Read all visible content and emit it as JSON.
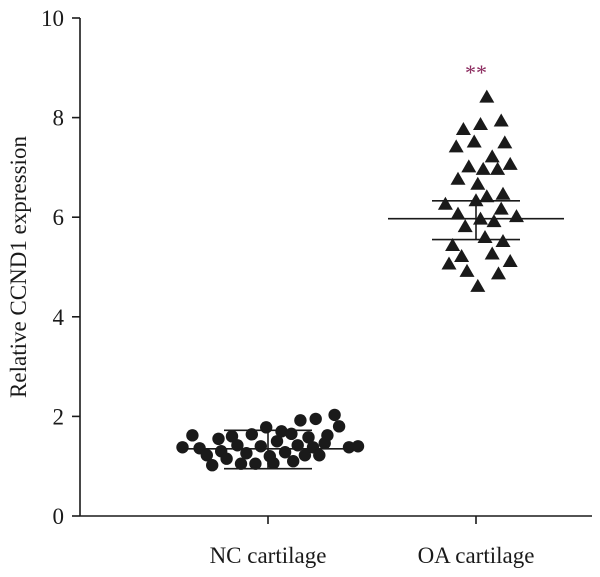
{
  "chart_data": {
    "type": "scatter",
    "title": "",
    "xlabel": "",
    "ylabel": "Relative CCND1 expression",
    "ylim": [
      0,
      10
    ],
    "yticks": [
      0,
      2,
      4,
      6,
      8,
      10
    ],
    "categories": [
      "NC cartilage",
      "OA cartilage"
    ],
    "grid": false,
    "legend": "none",
    "series": [
      {
        "category": "NC cartilage",
        "marker": "circle",
        "color": "#1a1a1a",
        "mean": 1.35,
        "sd_low": 0.95,
        "sd_high": 1.72,
        "points": [
          {
            "offset": -0.95,
            "y": 1.38
          },
          {
            "offset": -0.84,
            "y": 1.62
          },
          {
            "offset": -0.76,
            "y": 1.36
          },
          {
            "offset": -0.68,
            "y": 1.22
          },
          {
            "offset": -0.62,
            "y": 1.02
          },
          {
            "offset": -0.55,
            "y": 1.55
          },
          {
            "offset": -0.52,
            "y": 1.3
          },
          {
            "offset": -0.46,
            "y": 1.15
          },
          {
            "offset": -0.4,
            "y": 1.6
          },
          {
            "offset": -0.34,
            "y": 1.42
          },
          {
            "offset": -0.3,
            "y": 1.05
          },
          {
            "offset": -0.24,
            "y": 1.26
          },
          {
            "offset": -0.18,
            "y": 1.64
          },
          {
            "offset": -0.14,
            "y": 1.05
          },
          {
            "offset": -0.08,
            "y": 1.4
          },
          {
            "offset": -0.02,
            "y": 1.78
          },
          {
            "offset": 0.02,
            "y": 1.2
          },
          {
            "offset": 0.06,
            "y": 1.06
          },
          {
            "offset": 0.1,
            "y": 1.5
          },
          {
            "offset": 0.15,
            "y": 1.7
          },
          {
            "offset": 0.19,
            "y": 1.28
          },
          {
            "offset": 0.26,
            "y": 1.65
          },
          {
            "offset": 0.28,
            "y": 1.1
          },
          {
            "offset": 0.33,
            "y": 1.42
          },
          {
            "offset": 0.36,
            "y": 1.92
          },
          {
            "offset": 0.41,
            "y": 1.22
          },
          {
            "offset": 0.45,
            "y": 1.58
          },
          {
            "offset": 0.5,
            "y": 1.38
          },
          {
            "offset": 0.53,
            "y": 1.95
          },
          {
            "offset": 0.57,
            "y": 1.22
          },
          {
            "offset": 0.63,
            "y": 1.46
          },
          {
            "offset": 0.66,
            "y": 1.62
          },
          {
            "offset": 0.74,
            "y": 2.03
          },
          {
            "offset": 0.79,
            "y": 1.8
          },
          {
            "offset": 0.9,
            "y": 1.38
          },
          {
            "offset": 1.0,
            "y": 1.4
          }
        ]
      },
      {
        "category": "OA cartilage",
        "marker": "triangle",
        "color": "#1a1a1a",
        "mean": 5.97,
        "sd_low": 5.55,
        "sd_high": 6.33,
        "significance": "**",
        "significance_color": "#8b2a5e",
        "points": [
          {
            "offset": 0.12,
            "y": 8.4
          },
          {
            "offset": 0.05,
            "y": 7.85
          },
          {
            "offset": 0.28,
            "y": 7.92
          },
          {
            "offset": -0.14,
            "y": 7.75
          },
          {
            "offset": -0.22,
            "y": 7.4
          },
          {
            "offset": -0.02,
            "y": 7.5
          },
          {
            "offset": 0.32,
            "y": 7.48
          },
          {
            "offset": 0.18,
            "y": 7.2
          },
          {
            "offset": -0.08,
            "y": 7.0
          },
          {
            "offset": 0.08,
            "y": 6.95
          },
          {
            "offset": 0.24,
            "y": 6.95
          },
          {
            "offset": 0.38,
            "y": 7.05
          },
          {
            "offset": -0.2,
            "y": 6.75
          },
          {
            "offset": 0.02,
            "y": 6.65
          },
          {
            "offset": 0.12,
            "y": 6.4
          },
          {
            "offset": 0.3,
            "y": 6.45
          },
          {
            "offset": -0.34,
            "y": 6.25
          },
          {
            "offset": -0.2,
            "y": 6.05
          },
          {
            "offset": 0.0,
            "y": 6.32
          },
          {
            "offset": 0.28,
            "y": 6.15
          },
          {
            "offset": 0.45,
            "y": 6.0
          },
          {
            "offset": -0.12,
            "y": 5.8
          },
          {
            "offset": 0.05,
            "y": 5.95
          },
          {
            "offset": 0.2,
            "y": 5.9
          },
          {
            "offset": -0.26,
            "y": 5.42
          },
          {
            "offset": 0.1,
            "y": 5.58
          },
          {
            "offset": 0.3,
            "y": 5.5
          },
          {
            "offset": -0.16,
            "y": 5.2
          },
          {
            "offset": 0.18,
            "y": 5.25
          },
          {
            "offset": -0.3,
            "y": 5.05
          },
          {
            "offset": 0.38,
            "y": 5.1
          },
          {
            "offset": -0.1,
            "y": 4.9
          },
          {
            "offset": 0.25,
            "y": 4.85
          },
          {
            "offset": 0.02,
            "y": 4.6
          }
        ]
      }
    ]
  }
}
